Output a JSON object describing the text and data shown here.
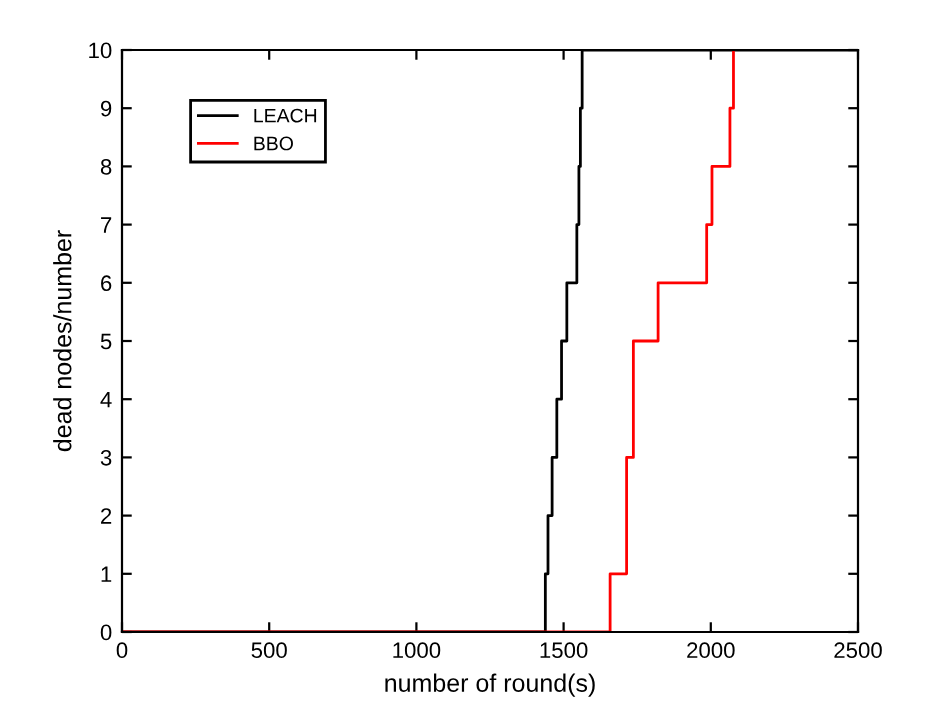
{
  "chart_data": {
    "type": "step",
    "xlabel": "number of round(s)",
    "ylabel": "dead nodes/number",
    "xlim": [
      0,
      2500
    ],
    "ylim": [
      0,
      10
    ],
    "xticks": [
      0,
      500,
      1000,
      1500,
      2000,
      2500
    ],
    "yticks": [
      0,
      1,
      2,
      3,
      4,
      5,
      6,
      7,
      8,
      9,
      10
    ],
    "grid": false,
    "legend": "top left",
    "series": [
      {
        "name": "LEACH",
        "color": "#000000",
        "x": [
          0,
          1438,
          1447,
          1461,
          1477,
          1493,
          1511,
          1545,
          1552,
          1557,
          1563,
          2500
        ],
        "values": [
          0,
          1,
          2,
          3,
          4,
          5,
          6,
          7,
          8,
          9,
          10,
          10
        ]
      },
      {
        "name": "BBO",
        "color": "#ff0000",
        "x": [
          0,
          1658,
          1714,
          1737,
          1821,
          1986,
          2004,
          2065,
          2077
        ],
        "values": [
          0,
          1,
          3,
          5,
          6,
          7,
          8,
          9,
          10
        ]
      }
    ]
  }
}
